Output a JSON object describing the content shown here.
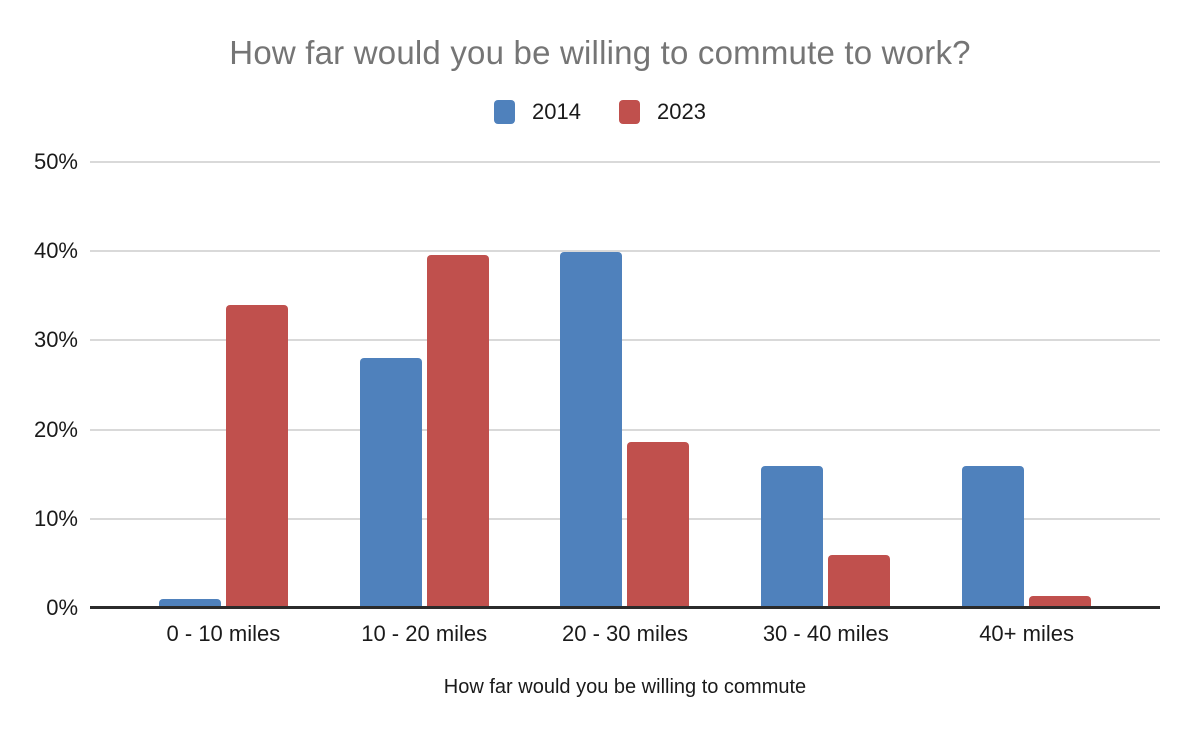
{
  "chart_data": {
    "type": "bar",
    "title": "How far would you be willing to commute to work?",
    "categories": [
      "0 - 10 miles",
      "10 - 20 miles",
      "20 - 30 miles",
      "30 - 40 miles",
      "40+ miles"
    ],
    "series": [
      {
        "name": "2014",
        "color": "#4F81BC",
        "values": [
          1.0,
          28.0,
          39.9,
          15.9,
          15.9
        ]
      },
      {
        "name": "2023",
        "color": "#C0504D",
        "values": [
          34.0,
          39.6,
          18.6,
          5.9,
          1.4
        ]
      }
    ],
    "xlabel": "How far would you be willing to commute",
    "ylabel": "",
    "ylim": [
      0,
      50
    ],
    "yticks": [
      {
        "value": 0,
        "label": "0%"
      },
      {
        "value": 10,
        "label": "10%"
      },
      {
        "value": 20,
        "label": "20%"
      },
      {
        "value": 30,
        "label": "30%"
      },
      {
        "value": 40,
        "label": "40%"
      },
      {
        "value": 50,
        "label": "50%"
      }
    ],
    "grid": true,
    "legend_position": "top",
    "colors": {
      "title_text": "#757575",
      "axis_text": "#1A1A1A",
      "gridline": "#D9D9D9",
      "axis_line": "#2B2B2B",
      "background": "#FFFFFF"
    }
  }
}
